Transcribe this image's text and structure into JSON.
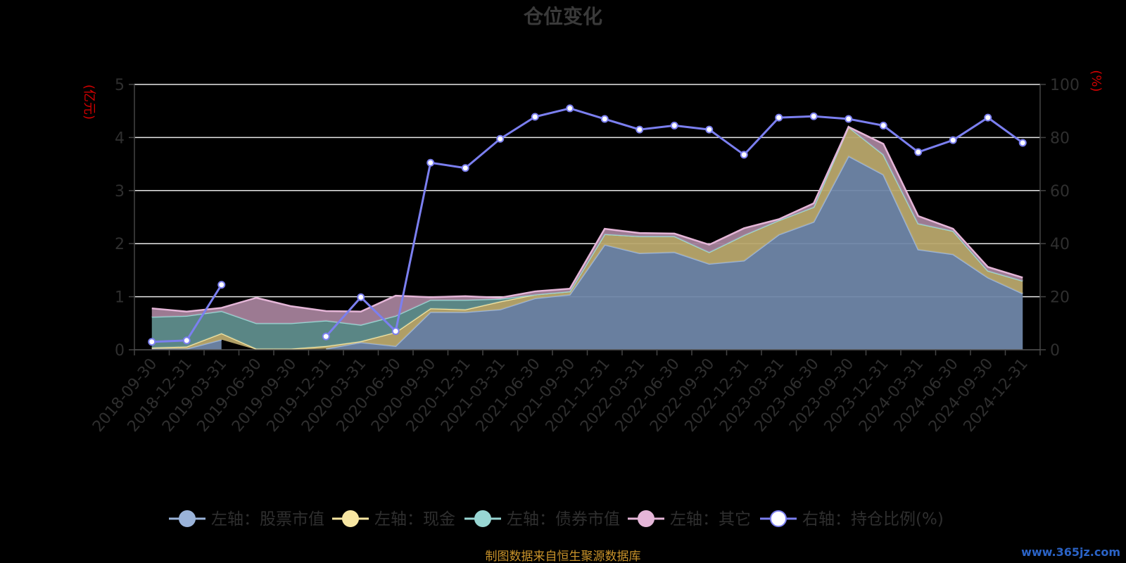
{
  "chart_data": {
    "type": "area",
    "title": "仓位变化",
    "left_axis_unit": "(亿元)",
    "right_axis_unit": "(%)",
    "ylim_left": [
      0,
      5
    ],
    "yticks_left": [
      0,
      1,
      2,
      3,
      4,
      5
    ],
    "ylim_right": [
      0,
      100
    ],
    "yticks_right": [
      0,
      20,
      40,
      60,
      80,
      100
    ],
    "grid": true,
    "legend_position": "bottom",
    "categories": [
      "2018-09-30",
      "2018-12-31",
      "2019-03-31",
      "2019-06-30",
      "2019-09-30",
      "2019-12-31",
      "2020-03-31",
      "2020-06-30",
      "2020-09-30",
      "2020-12-31",
      "2021-03-31",
      "2021-06-30",
      "2021-09-30",
      "2021-12-31",
      "2022-03-31",
      "2022-06-30",
      "2022-09-30",
      "2022-12-31",
      "2023-03-31",
      "2023-06-30",
      "2023-09-30",
      "2023-12-31",
      "2024-03-31",
      "2024-06-30",
      "2024-09-30",
      "2024-12-31"
    ],
    "series": [
      {
        "name": "左轴：股票市值",
        "axis": "left",
        "color": "#9ab3d9",
        "fill": "#6f86a8",
        "values": [
          0.02,
          0.02,
          0.19,
          null,
          null,
          0.02,
          0.14,
          0.07,
          0.71,
          0.71,
          0.76,
          0.97,
          1.04,
          1.98,
          1.82,
          1.84,
          1.62,
          1.68,
          2.17,
          2.41,
          3.65,
          3.3,
          1.89,
          1.8,
          1.36,
          1.06
        ]
      },
      {
        "name": "左轴：现金",
        "axis": "left",
        "color": "#f7e6a2",
        "fill": "#b8a66c",
        "values": [
          0.02,
          0.04,
          0.12,
          0.02,
          0.02,
          0.05,
          0.02,
          0.26,
          0.07,
          0.05,
          0.15,
          0.07,
          0.06,
          0.2,
          0.32,
          0.3,
          0.22,
          0.48,
          0.27,
          0.28,
          0.55,
          0.38,
          0.49,
          0.44,
          0.13,
          0.24
        ]
      },
      {
        "name": "左轴：债券市值",
        "axis": "left",
        "color": "#98d6d3",
        "fill": "#5f8d8c",
        "values": [
          0.58,
          0.58,
          0.42,
          0.48,
          0.48,
          0.48,
          0.31,
          0.31,
          0.16,
          0.18,
          0.05,
          0.0,
          0.0,
          0.0,
          0.0,
          0.0,
          0.0,
          0.0,
          0.0,
          0.0,
          0.0,
          0.0,
          0.0,
          0.0,
          0.0,
          0.0
        ]
      },
      {
        "name": "左轴：其它",
        "axis": "left",
        "color": "#e5b6d8",
        "fill": "#a4819a",
        "values": [
          0.16,
          0.08,
          0.06,
          0.48,
          0.32,
          0.18,
          0.25,
          0.38,
          0.05,
          0.07,
          0.02,
          0.06,
          0.05,
          0.1,
          0.06,
          0.05,
          0.14,
          0.13,
          0.02,
          0.07,
          0.0,
          0.2,
          0.14,
          0.04,
          0.07,
          0.06
        ]
      },
      {
        "name": "右轴：持仓比例(%)",
        "axis": "right",
        "color": "#7b7ff0",
        "values": [
          3,
          3.5,
          24.5,
          null,
          null,
          5,
          19.8,
          7,
          70.5,
          68.5,
          79.5,
          87.8,
          91,
          87,
          83,
          84.5,
          83,
          73.5,
          87.5,
          88,
          87,
          84.5,
          74.5,
          79,
          87.5,
          78
        ]
      }
    ]
  },
  "source_note": "制图数据来自恒生聚源数据库",
  "watermark": "www.365jz.com"
}
